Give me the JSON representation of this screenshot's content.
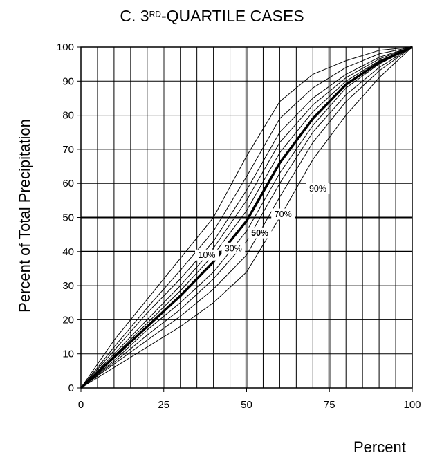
{
  "chart_data": {
    "type": "line",
    "title": {
      "prefix": "C. 3",
      "superscript": "RD",
      "suffix": "-QUARTILE CASES"
    },
    "xlabel": "Percent",
    "ylabel": "Percent of Total Precipitation",
    "xlim": [
      0,
      100
    ],
    "ylim": [
      0,
      100
    ],
    "x_ticks": [
      0,
      25,
      50,
      75,
      100
    ],
    "x_tick_labels": [
      "0",
      "25",
      "50",
      "75",
      "100"
    ],
    "y_ticks": [
      0,
      10,
      20,
      30,
      40,
      50,
      60,
      70,
      80,
      90,
      100
    ],
    "y_tick_labels": [
      "0",
      "10",
      "20",
      "30",
      "40",
      "50",
      "60",
      "70",
      "80",
      "90",
      "100"
    ],
    "grid": {
      "vertical_minor_step": 5,
      "vertical_major": [
        25,
        50,
        75
      ],
      "horizontal_major": [
        40,
        50
      ]
    },
    "x": [
      0,
      10,
      20,
      30,
      40,
      50,
      60,
      70,
      80,
      90,
      100
    ],
    "series": [
      {
        "values": [
          0,
          6,
          12,
          18,
          25,
          34,
          50,
          67,
          80,
          91,
          100
        ]
      },
      {
        "values": [
          0,
          7,
          14,
          21,
          29,
          39,
          56,
          72,
          84,
          93,
          100
        ]
      },
      {
        "values": [
          0,
          7.5,
          15.5,
          23,
          32,
          43,
          60,
          75,
          86,
          94,
          100
        ]
      },
      {
        "values": [
          0,
          8,
          17,
          25,
          34,
          46,
          63,
          77,
          88,
          95,
          100
        ]
      },
      {
        "values": [
          0,
          9,
          18,
          27,
          37,
          49,
          66,
          79,
          89,
          95.5,
          100
        ]
      },
      {
        "values": [
          0,
          9.5,
          19,
          28.5,
          39,
          52,
          69,
          81,
          90,
          96,
          100
        ]
      },
      {
        "values": [
          0,
          10,
          20,
          30,
          41,
          55,
          72,
          83,
          91,
          96.5,
          100
        ]
      },
      {
        "values": [
          0,
          11,
          22,
          32,
          43,
          58,
          75,
          85,
          92,
          97,
          100
        ]
      },
      {
        "values": [
          0,
          12,
          23.5,
          34.5,
          46,
          62,
          79,
          88,
          94,
          98,
          100
        ]
      },
      {
        "values": [
          0,
          14,
          26,
          38,
          50,
          68,
          84,
          92,
          96,
          99,
          100
        ]
      }
    ],
    "bold_series_index": 4,
    "curve_labels": [
      {
        "text": "10%",
        "x": 38,
        "y": 39,
        "bold": false
      },
      {
        "text": "30%",
        "x": 46,
        "y": 41,
        "bold": false
      },
      {
        "text": "50%",
        "x": 54,
        "y": 45.5,
        "bold": true
      },
      {
        "text": "70%",
        "x": 61,
        "y": 51,
        "bold": false
      },
      {
        "text": "90%",
        "x": 71.5,
        "y": 58.5,
        "bold": false
      }
    ]
  }
}
